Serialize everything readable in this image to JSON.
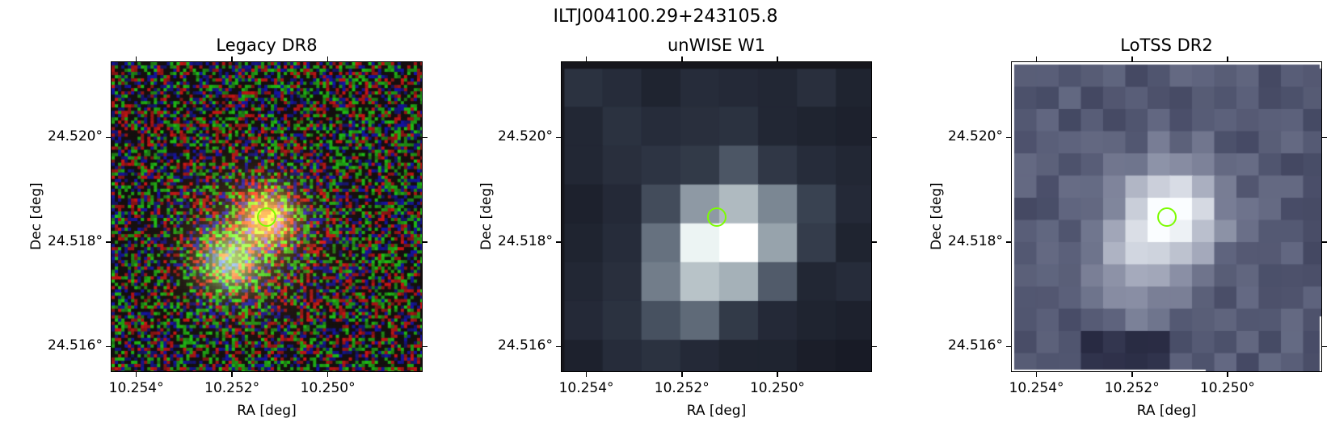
{
  "figure_title": "ILTJ004100.29+243105.8",
  "panels": [
    {
      "title": "Legacy DR8",
      "xlabel": "RA [deg]",
      "ylabel": "Dec [deg]",
      "xticks": [
        "10.254°",
        "10.252°",
        "10.250°"
      ],
      "yticks": [
        "24.520°",
        "24.518°",
        "24.516°"
      ],
      "marker_color": "#7cfc00"
    },
    {
      "title": "unWISE W1",
      "xlabel": "RA [deg]",
      "ylabel": "Dec [deg]",
      "xticks": [
        "10.254°",
        "10.252°",
        "10.250°"
      ],
      "yticks": [
        "24.520°",
        "24.518°",
        "24.516°"
      ],
      "marker_color": "#7cfc00"
    },
    {
      "title": "LoTSS DR2",
      "xlabel": "RA [deg]",
      "ylabel": "Dec [deg]",
      "xticks": [
        "10.254°",
        "10.252°",
        "10.250°"
      ],
      "yticks": [
        "24.520°",
        "24.518°",
        "24.516°"
      ],
      "marker_color": "#7cfc00"
    }
  ]
}
